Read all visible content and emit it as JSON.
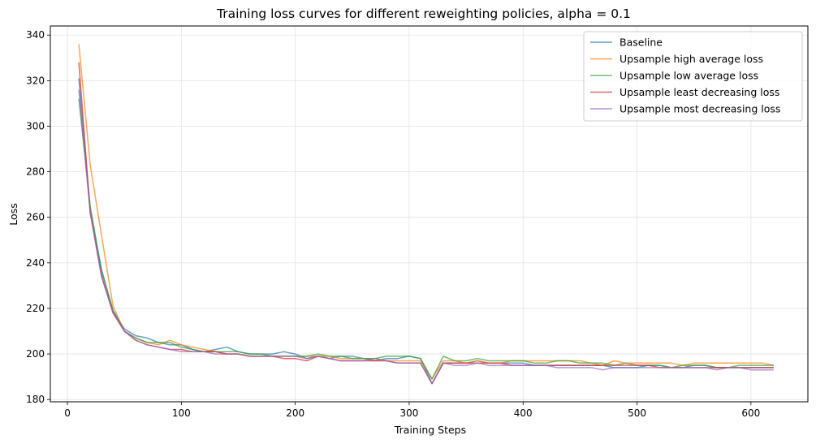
{
  "chart_data": {
    "type": "line",
    "title": "Training loss curves for different reweighting policies, alpha = 0.1",
    "xlabel": "Training Steps",
    "ylabel": "Loss",
    "xlim": [
      -15,
      650
    ],
    "ylim": [
      179,
      344
    ],
    "xticks": [
      0,
      100,
      200,
      300,
      400,
      500,
      600
    ],
    "yticks": [
      180,
      200,
      220,
      240,
      260,
      280,
      300,
      320,
      340
    ],
    "grid": true,
    "legend_position": "top-right",
    "x": [
      10,
      20,
      30,
      40,
      50,
      60,
      70,
      80,
      90,
      100,
      110,
      120,
      130,
      140,
      150,
      160,
      170,
      180,
      190,
      200,
      210,
      220,
      230,
      240,
      250,
      260,
      270,
      280,
      290,
      300,
      310,
      320,
      330,
      340,
      350,
      360,
      370,
      380,
      390,
      400,
      410,
      420,
      430,
      440,
      450,
      460,
      470,
      480,
      490,
      500,
      510,
      520,
      530,
      540,
      550,
      560,
      570,
      580,
      590,
      600,
      610,
      620
    ],
    "series": [
      {
        "name": "Baseline",
        "color": "#1f77b4",
        "values": [
          321,
          263,
          237,
          219,
          211,
          208,
          207,
          205,
          204,
          204,
          202,
          201,
          202,
          203,
          201,
          200,
          200,
          200,
          201,
          200,
          198,
          199,
          198,
          199,
          199,
          198,
          197,
          198,
          198,
          199,
          198,
          187,
          196,
          196,
          196,
          197,
          196,
          196,
          196,
          196,
          195,
          195,
          195,
          195,
          195,
          195,
          195,
          194,
          194,
          194,
          195,
          195,
          194,
          194,
          195,
          195,
          194,
          194,
          194,
          194,
          194,
          194
        ]
      },
      {
        "name": "Upsample high average loss",
        "color": "#ff7f0e",
        "values": [
          336,
          283,
          252,
          221,
          210,
          207,
          205,
          204,
          206,
          204,
          203,
          202,
          201,
          200,
          200,
          199,
          199,
          199,
          199,
          199,
          199,
          199,
          199,
          198,
          198,
          198,
          198,
          197,
          197,
          197,
          197,
          189,
          197,
          197,
          196,
          197,
          196,
          196,
          197,
          197,
          197,
          197,
          197,
          197,
          197,
          196,
          195,
          197,
          196,
          196,
          196,
          196,
          196,
          195,
          196,
          196,
          196,
          196,
          196,
          196,
          196,
          195
        ]
      },
      {
        "name": "Upsample low average loss",
        "color": "#2ca02c",
        "values": [
          312,
          265,
          236,
          219,
          210,
          207,
          205,
          205,
          205,
          203,
          202,
          201,
          201,
          201,
          201,
          200,
          200,
          199,
          199,
          199,
          199,
          200,
          199,
          199,
          198,
          198,
          198,
          199,
          199,
          199,
          198,
          189,
          199,
          197,
          197,
          198,
          197,
          197,
          197,
          197,
          196,
          196,
          197,
          197,
          196,
          196,
          196,
          195,
          196,
          195,
          195,
          195,
          194,
          195,
          195,
          195,
          194,
          194,
          195,
          195,
          195,
          195
        ]
      },
      {
        "name": "Upsample least decreasing loss",
        "color": "#d62728",
        "values": [
          328,
          262,
          234,
          218,
          210,
          206,
          204,
          203,
          202,
          202,
          201,
          201,
          201,
          200,
          200,
          199,
          199,
          199,
          198,
          198,
          197,
          199,
          198,
          197,
          197,
          197,
          197,
          197,
          196,
          196,
          196,
          187,
          196,
          196,
          196,
          196,
          196,
          196,
          195,
          195,
          195,
          195,
          195,
          195,
          195,
          195,
          195,
          195,
          195,
          195,
          195,
          194,
          194,
          194,
          194,
          194,
          194,
          194,
          194,
          194,
          194,
          194
        ]
      },
      {
        "name": "Upsample most decreasing loss",
        "color": "#9467bd",
        "values": [
          316,
          262,
          234,
          218,
          210,
          206,
          204,
          203,
          202,
          201,
          201,
          201,
          200,
          200,
          200,
          199,
          199,
          199,
          199,
          199,
          198,
          199,
          198,
          197,
          197,
          197,
          198,
          197,
          196,
          196,
          196,
          187,
          196,
          195,
          195,
          196,
          195,
          195,
          195,
          195,
          195,
          195,
          194,
          194,
          194,
          194,
          193,
          194,
          194,
          194,
          194,
          194,
          194,
          194,
          194,
          194,
          193,
          194,
          194,
          193,
          193,
          193
        ]
      }
    ]
  }
}
